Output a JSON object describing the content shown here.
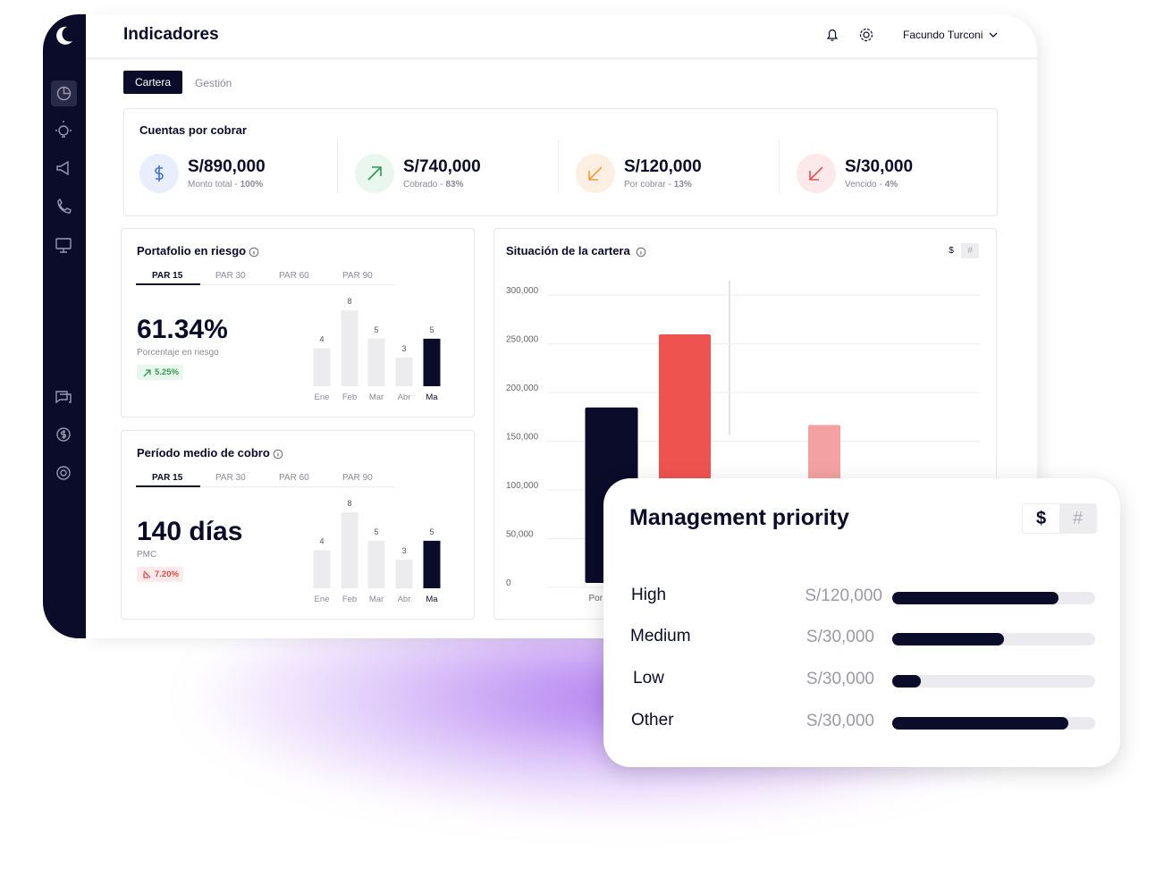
{
  "header": {
    "title": "Indicadores",
    "user": "Facundo Turconi"
  },
  "tabs": [
    "Cartera",
    "Gestión"
  ],
  "summary": {
    "title": "Cuentas por cobrar",
    "cards": [
      {
        "amount": "S/890,000",
        "label": "Monto total -",
        "percent": "100%"
      },
      {
        "amount": "S/740,000",
        "label": "Cobrado -",
        "percent": "83%"
      },
      {
        "amount": "S/120,000",
        "label": "Por cobrar -",
        "percent": "13%"
      },
      {
        "amount": "S/30,000",
        "label": "Vencido -",
        "percent": "4%"
      }
    ]
  },
  "panels": [
    {
      "title": "Portafolio en riesgo",
      "tabs": [
        "PAR 15",
        "PAR 30",
        "PAR 60",
        "PAR 90"
      ],
      "value": "61.34%",
      "caption": "Porcentaje en riesgo",
      "change": "5.25%",
      "chart_data": {
        "type": "bar",
        "categories": [
          "Ene",
          "Feb",
          "Mar",
          "Abr",
          "Ma"
        ],
        "values": [
          4,
          8,
          5,
          3,
          5
        ],
        "colors": [
          "#ececee",
          "#ececee",
          "#ececee",
          "#ececee",
          "#0b0b2a"
        ],
        "ylim": [
          0,
          8
        ]
      }
    },
    {
      "title": "Período medio de cobro",
      "tabs": [
        "PAR 15",
        "PAR 30",
        "PAR 60",
        "PAR 90"
      ],
      "value": "140 días",
      "caption": "PMC",
      "change": "7.20%",
      "chart_data": {
        "type": "bar",
        "categories": [
          "Ene",
          "Feb",
          "Mar",
          "Abr",
          "Ma"
        ],
        "values": [
          4,
          8,
          5,
          3,
          5
        ],
        "colors": [
          "#ececee",
          "#ececee",
          "#ececee",
          "#ececee",
          "#0b0b2a"
        ],
        "ylim": [
          0,
          8
        ]
      }
    }
  ],
  "situacion": {
    "title": "Situación de la cartera",
    "toggles": [
      "$",
      "#"
    ],
    "chart_data": {
      "type": "bar",
      "categories": [
        "Por",
        null,
        null
      ],
      "values": [
        180000,
        255000,
        162000
      ],
      "colors": [
        "#0b0b2a",
        "#ef5350",
        "#f4a1a1"
      ],
      "ylim": [
        0,
        300000
      ],
      "grid": true,
      "yticks": [
        0,
        {
          "value": 50000,
          "label": "50,000"
        },
        {
          "value": 100000,
          "label": "100,000"
        },
        {
          "value": 150000,
          "label": "150,000"
        },
        {
          "value": 200000,
          "label": "200,000"
        },
        {
          "value": 250000,
          "label": "250,000"
        },
        {
          "value": 300000,
          "label": "300,000"
        }
      ]
    }
  },
  "priority": {
    "title": "Management priority",
    "toggles": [
      "$",
      "#"
    ],
    "xlim": [
      0,
      100
    ],
    "color": "#0b0b2a",
    "rows": [
      {
        "label": "High",
        "amount": "S/120,000",
        "progress": 82
      },
      {
        "label": "Medium",
        "amount": "S/30,000",
        "progress": 55
      },
      {
        "label": "Low",
        "amount": "S/30,000",
        "progress": 14
      },
      {
        "label": "Other",
        "amount": "S/30,000",
        "progress": 87
      }
    ]
  }
}
